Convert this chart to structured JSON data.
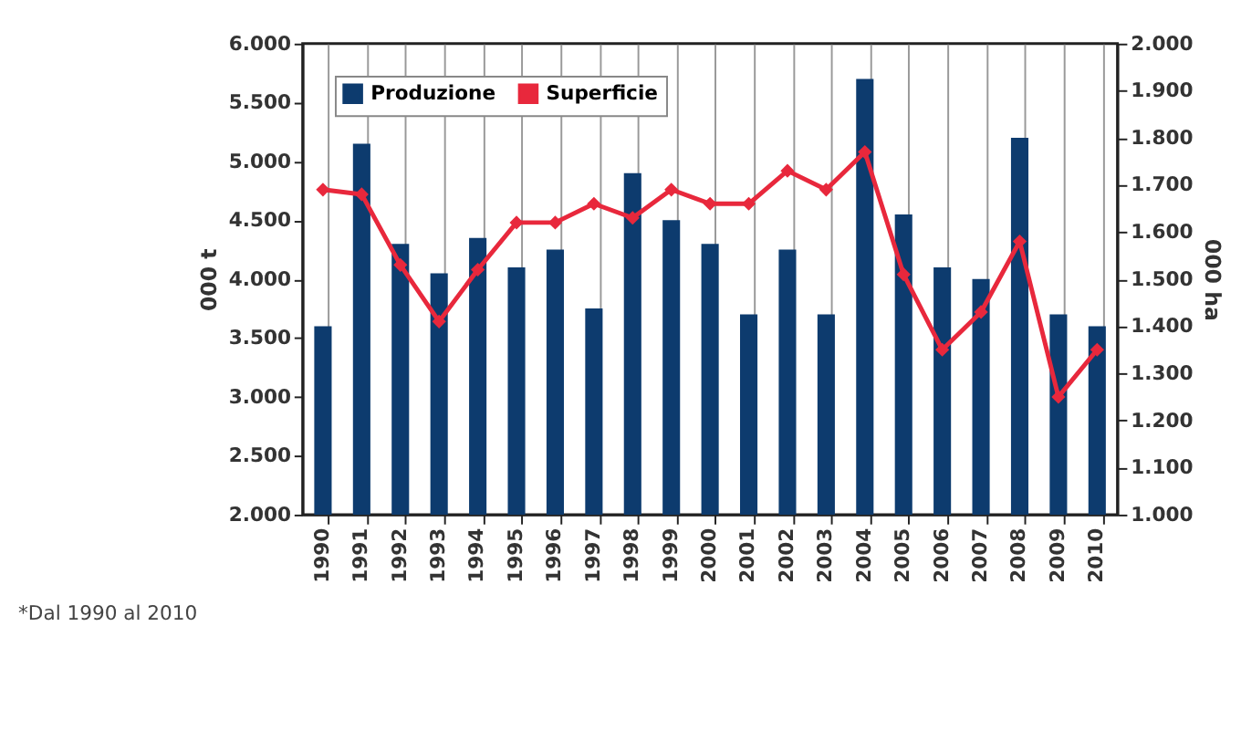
{
  "chart_data": {
    "type": "bar",
    "categories": [
      "1990",
      "1991",
      "1992",
      "1993",
      "1994",
      "1995",
      "1996",
      "1997",
      "1998",
      "1999",
      "2000",
      "2001",
      "2002",
      "2003",
      "2004",
      "2005",
      "2006",
      "2007",
      "2008",
      "2009",
      "2010"
    ],
    "series": [
      {
        "name": "Produzione",
        "color": "#0d3b6e",
        "values": [
          3600,
          5150,
          4300,
          4050,
          4350,
          4100,
          4250,
          3750,
          4900,
          4500,
          4300,
          3700,
          4250,
          3700,
          5700,
          4550,
          4100,
          4000,
          5200,
          3700,
          3600
        ]
      },
      {
        "name": "Superficie",
        "type": "line",
        "axis": "y2",
        "color": "#e8283c",
        "marker": "diamond",
        "values": [
          1690,
          1680,
          1530,
          1410,
          1520,
          1620,
          1620,
          1660,
          1630,
          1690,
          1660,
          1660,
          1730,
          1690,
          1770,
          1510,
          1350,
          1430,
          1580,
          1250,
          1350
        ]
      }
    ],
    "ylabel": "000 t",
    "y2label": "000 ha",
    "ylim": [
      2000,
      6000
    ],
    "yticks": [
      {
        "value": 2000,
        "label": "2.000"
      },
      {
        "value": 2500,
        "label": "2.500"
      },
      {
        "value": 3000,
        "label": "3.000"
      },
      {
        "value": 3500,
        "label": "3.500"
      },
      {
        "value": 4000,
        "label": "4.000"
      },
      {
        "value": 4500,
        "label": "4.500"
      },
      {
        "value": 5000,
        "label": "5.000"
      },
      {
        "value": 5500,
        "label": "5.500"
      },
      {
        "value": 6000,
        "label": "6.000"
      }
    ],
    "y2lim": [
      1000,
      2000
    ],
    "y2ticks": [
      {
        "value": 1000,
        "label": "1.000"
      },
      {
        "value": 1100,
        "label": "1.100"
      },
      {
        "value": 1200,
        "label": "1.200"
      },
      {
        "value": 1300,
        "label": "1.300"
      },
      {
        "value": 1400,
        "label": "1.400"
      },
      {
        "value": 1500,
        "label": "1.500"
      },
      {
        "value": 1600,
        "label": "1.600"
      },
      {
        "value": 1700,
        "label": "1.700"
      },
      {
        "value": 1800,
        "label": "1.800"
      },
      {
        "value": 1900,
        "label": "1.900"
      },
      {
        "value": 2000,
        "label": "2.000"
      }
    ],
    "grid": "x",
    "legend": "top left",
    "annotations": [
      "*Dal 1990 al 2010"
    ]
  }
}
